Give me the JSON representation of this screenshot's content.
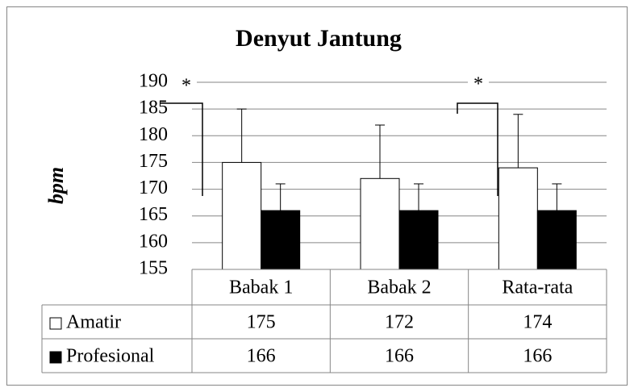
{
  "chart_data": {
    "type": "bar",
    "title": "Denyut Jantung",
    "y_label": "bpm",
    "categories": [
      "Babak 1",
      "Babak 2",
      "Rata-rata"
    ],
    "series": [
      {
        "name": "Amatir",
        "color": "#ffffff",
        "values": [
          175,
          172,
          174
        ],
        "errors": [
          10,
          10,
          10
        ]
      },
      {
        "name": "Profesional",
        "color": "#000000",
        "values": [
          166,
          166,
          166
        ],
        "errors": [
          5,
          5,
          5
        ]
      }
    ],
    "ylim": [
      155,
      190
    ],
    "yticks": [
      155,
      160,
      165,
      170,
      175,
      180,
      185,
      190
    ],
    "grid": true,
    "annotations": [
      "*",
      "*"
    ],
    "data_table": true
  }
}
